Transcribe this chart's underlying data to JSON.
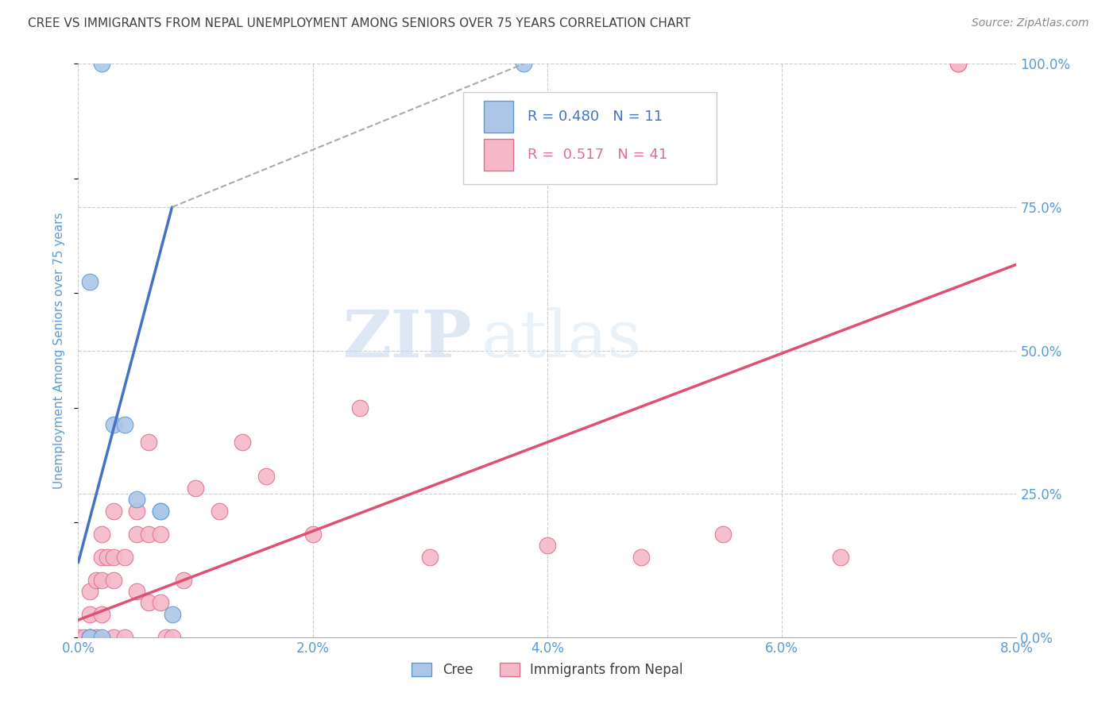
{
  "title": "CREE VS IMMIGRANTS FROM NEPAL UNEMPLOYMENT AMONG SENIORS OVER 75 YEARS CORRELATION CHART",
  "source": "Source: ZipAtlas.com",
  "ylabel": "Unemployment Among Seniors over 75 years",
  "xlim": [
    0.0,
    0.08
  ],
  "ylim": [
    0.0,
    1.0
  ],
  "xticks": [
    0.0,
    0.02,
    0.04,
    0.06,
    0.08
  ],
  "xticklabels": [
    "0.0%",
    "2.0%",
    "4.0%",
    "6.0%",
    "8.0%"
  ],
  "yticks_right": [
    0.0,
    0.25,
    0.5,
    0.75,
    1.0
  ],
  "yticklabels_right": [
    "0.0%",
    "25.0%",
    "50.0%",
    "75.0%",
    "100.0%"
  ],
  "background_color": "#ffffff",
  "grid_color": "#cccccc",
  "watermark_zip": "ZIP",
  "watermark_atlas": "atlas",
  "cree_color": "#adc6e8",
  "nepal_color": "#f5b8c8",
  "cree_edge_color": "#5b9bd5",
  "nepal_edge_color": "#e07090",
  "cree_line_color": "#4472c4",
  "nepal_line_color": "#e05070",
  "cree_R": 0.48,
  "cree_N": 11,
  "nepal_R": 0.517,
  "nepal_N": 41,
  "title_color": "#404040",
  "axis_label_color": "#5b9bd5",
  "cree_x": [
    0.001,
    0.001,
    0.001,
    0.001,
    0.002,
    0.003,
    0.004,
    0.005,
    0.007,
    0.007,
    0.008
  ],
  "cree_y": [
    0.0,
    0.0,
    0.0,
    0.62,
    0.0,
    0.37,
    0.37,
    0.24,
    0.22,
    0.22,
    0.04
  ],
  "cree_line_x0": 0.0,
  "cree_line_y0": 0.13,
  "cree_line_x1": 0.008,
  "cree_line_y1": 0.75,
  "cree_line_dash_x0": 0.008,
  "cree_line_dash_y0": 0.75,
  "cree_line_dash_x1": 0.038,
  "cree_line_dash_y1": 1.0,
  "nepal_line_x0": 0.0,
  "nepal_line_y0": 0.03,
  "nepal_line_x1": 0.08,
  "nepal_line_y1": 0.65,
  "nepal_x": [
    0.0,
    0.0005,
    0.001,
    0.001,
    0.001,
    0.0015,
    0.0015,
    0.002,
    0.002,
    0.002,
    0.002,
    0.0025,
    0.003,
    0.003,
    0.003,
    0.003,
    0.004,
    0.004,
    0.005,
    0.005,
    0.005,
    0.006,
    0.006,
    0.006,
    0.007,
    0.007,
    0.0075,
    0.008,
    0.009,
    0.01,
    0.012,
    0.014,
    0.016,
    0.02,
    0.024,
    0.03,
    0.04,
    0.048,
    0.055,
    0.065,
    0.075
  ],
  "nepal_y": [
    0.0,
    0.0,
    0.0,
    0.04,
    0.08,
    0.0,
    0.1,
    0.04,
    0.1,
    0.14,
    0.18,
    0.14,
    0.0,
    0.1,
    0.14,
    0.22,
    0.0,
    0.14,
    0.08,
    0.18,
    0.22,
    0.06,
    0.18,
    0.34,
    0.06,
    0.18,
    0.0,
    0.0,
    0.1,
    0.26,
    0.22,
    0.34,
    0.28,
    0.18,
    0.4,
    0.14,
    0.16,
    0.14,
    0.18,
    0.14,
    1.0
  ],
  "cree_top_points_x": [
    0.002,
    0.038
  ],
  "cree_top_points_y": [
    1.0,
    1.0
  ],
  "nepal_top_point_x": [
    0.075
  ],
  "nepal_top_point_y": [
    1.0
  ]
}
